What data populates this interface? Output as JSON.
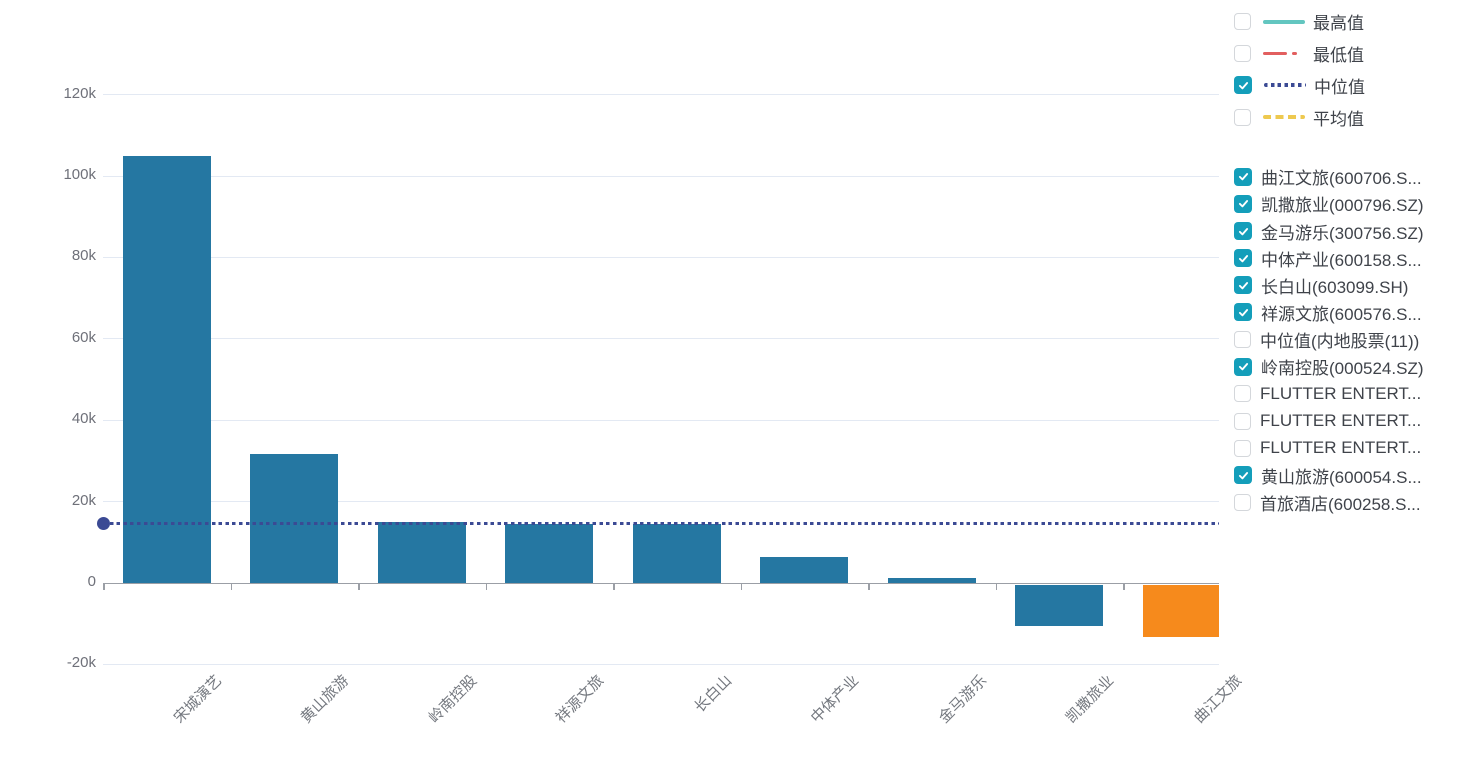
{
  "chart_data": {
    "type": "bar",
    "title": "",
    "xlabel": "",
    "ylabel": "",
    "categories": [
      "宋城演艺",
      "黄山旅游",
      "岭南控股",
      "祥源文旅",
      "长白山",
      "中体产业",
      "金马游乐",
      "凯撒旅业",
      "曲江文旅"
    ],
    "values": [
      105000,
      31700,
      15000,
      14500,
      14450,
      6400,
      1200,
      -10100,
      -12900
    ],
    "ylim": [
      -20000,
      120000
    ],
    "ytick_interval": 20000,
    "ytick_labels": [
      "-20k",
      "0",
      "20k",
      "40k",
      "60k",
      "80k",
      "100k",
      "120k"
    ],
    "grid": true,
    "legend_position": "right",
    "bar_default_color": "#2577a2",
    "bar_highlight_color": "#f68a1c",
    "highlight_index": 8,
    "reference_lines": [
      {
        "name": "中位值",
        "value": 14500,
        "color": "#3b4a94",
        "style": "dotted",
        "visible": true
      }
    ]
  },
  "legend": {
    "stat_lines": [
      {
        "label": "最高值",
        "checked": false,
        "line_style": "solid",
        "color": "#63c6c0"
      },
      {
        "label": "最低值",
        "checked": false,
        "line_style": "dash-dot",
        "color": "#e25f5f"
      },
      {
        "label": "中位值",
        "checked": true,
        "line_style": "dotted",
        "color": "#3b4a94"
      },
      {
        "label": "平均值",
        "checked": false,
        "line_style": "dashed",
        "color": "#eec94f"
      }
    ],
    "series_items": [
      {
        "label": "曲江文旅(600706.S...",
        "checked": true
      },
      {
        "label": "凯撒旅业(000796.SZ)",
        "checked": true
      },
      {
        "label": "金马游乐(300756.SZ)",
        "checked": true
      },
      {
        "label": "中体产业(600158.S...",
        "checked": true
      },
      {
        "label": "长白山(603099.SH)",
        "checked": true
      },
      {
        "label": "祥源文旅(600576.S...",
        "checked": true
      },
      {
        "label": "中位值(内地股票(11))",
        "checked": false
      },
      {
        "label": "岭南控股(000524.SZ)",
        "checked": true
      },
      {
        "label": "FLUTTER ENTERT...",
        "checked": false
      },
      {
        "label": "FLUTTER ENTERT...",
        "checked": false
      },
      {
        "label": "FLUTTER ENTERT...",
        "checked": false
      },
      {
        "label": "黄山旅游(600054.S...",
        "checked": true
      },
      {
        "label": "首旅酒店(600258.S...",
        "checked": false
      }
    ],
    "checkbox_checked_color": "#149eba"
  }
}
